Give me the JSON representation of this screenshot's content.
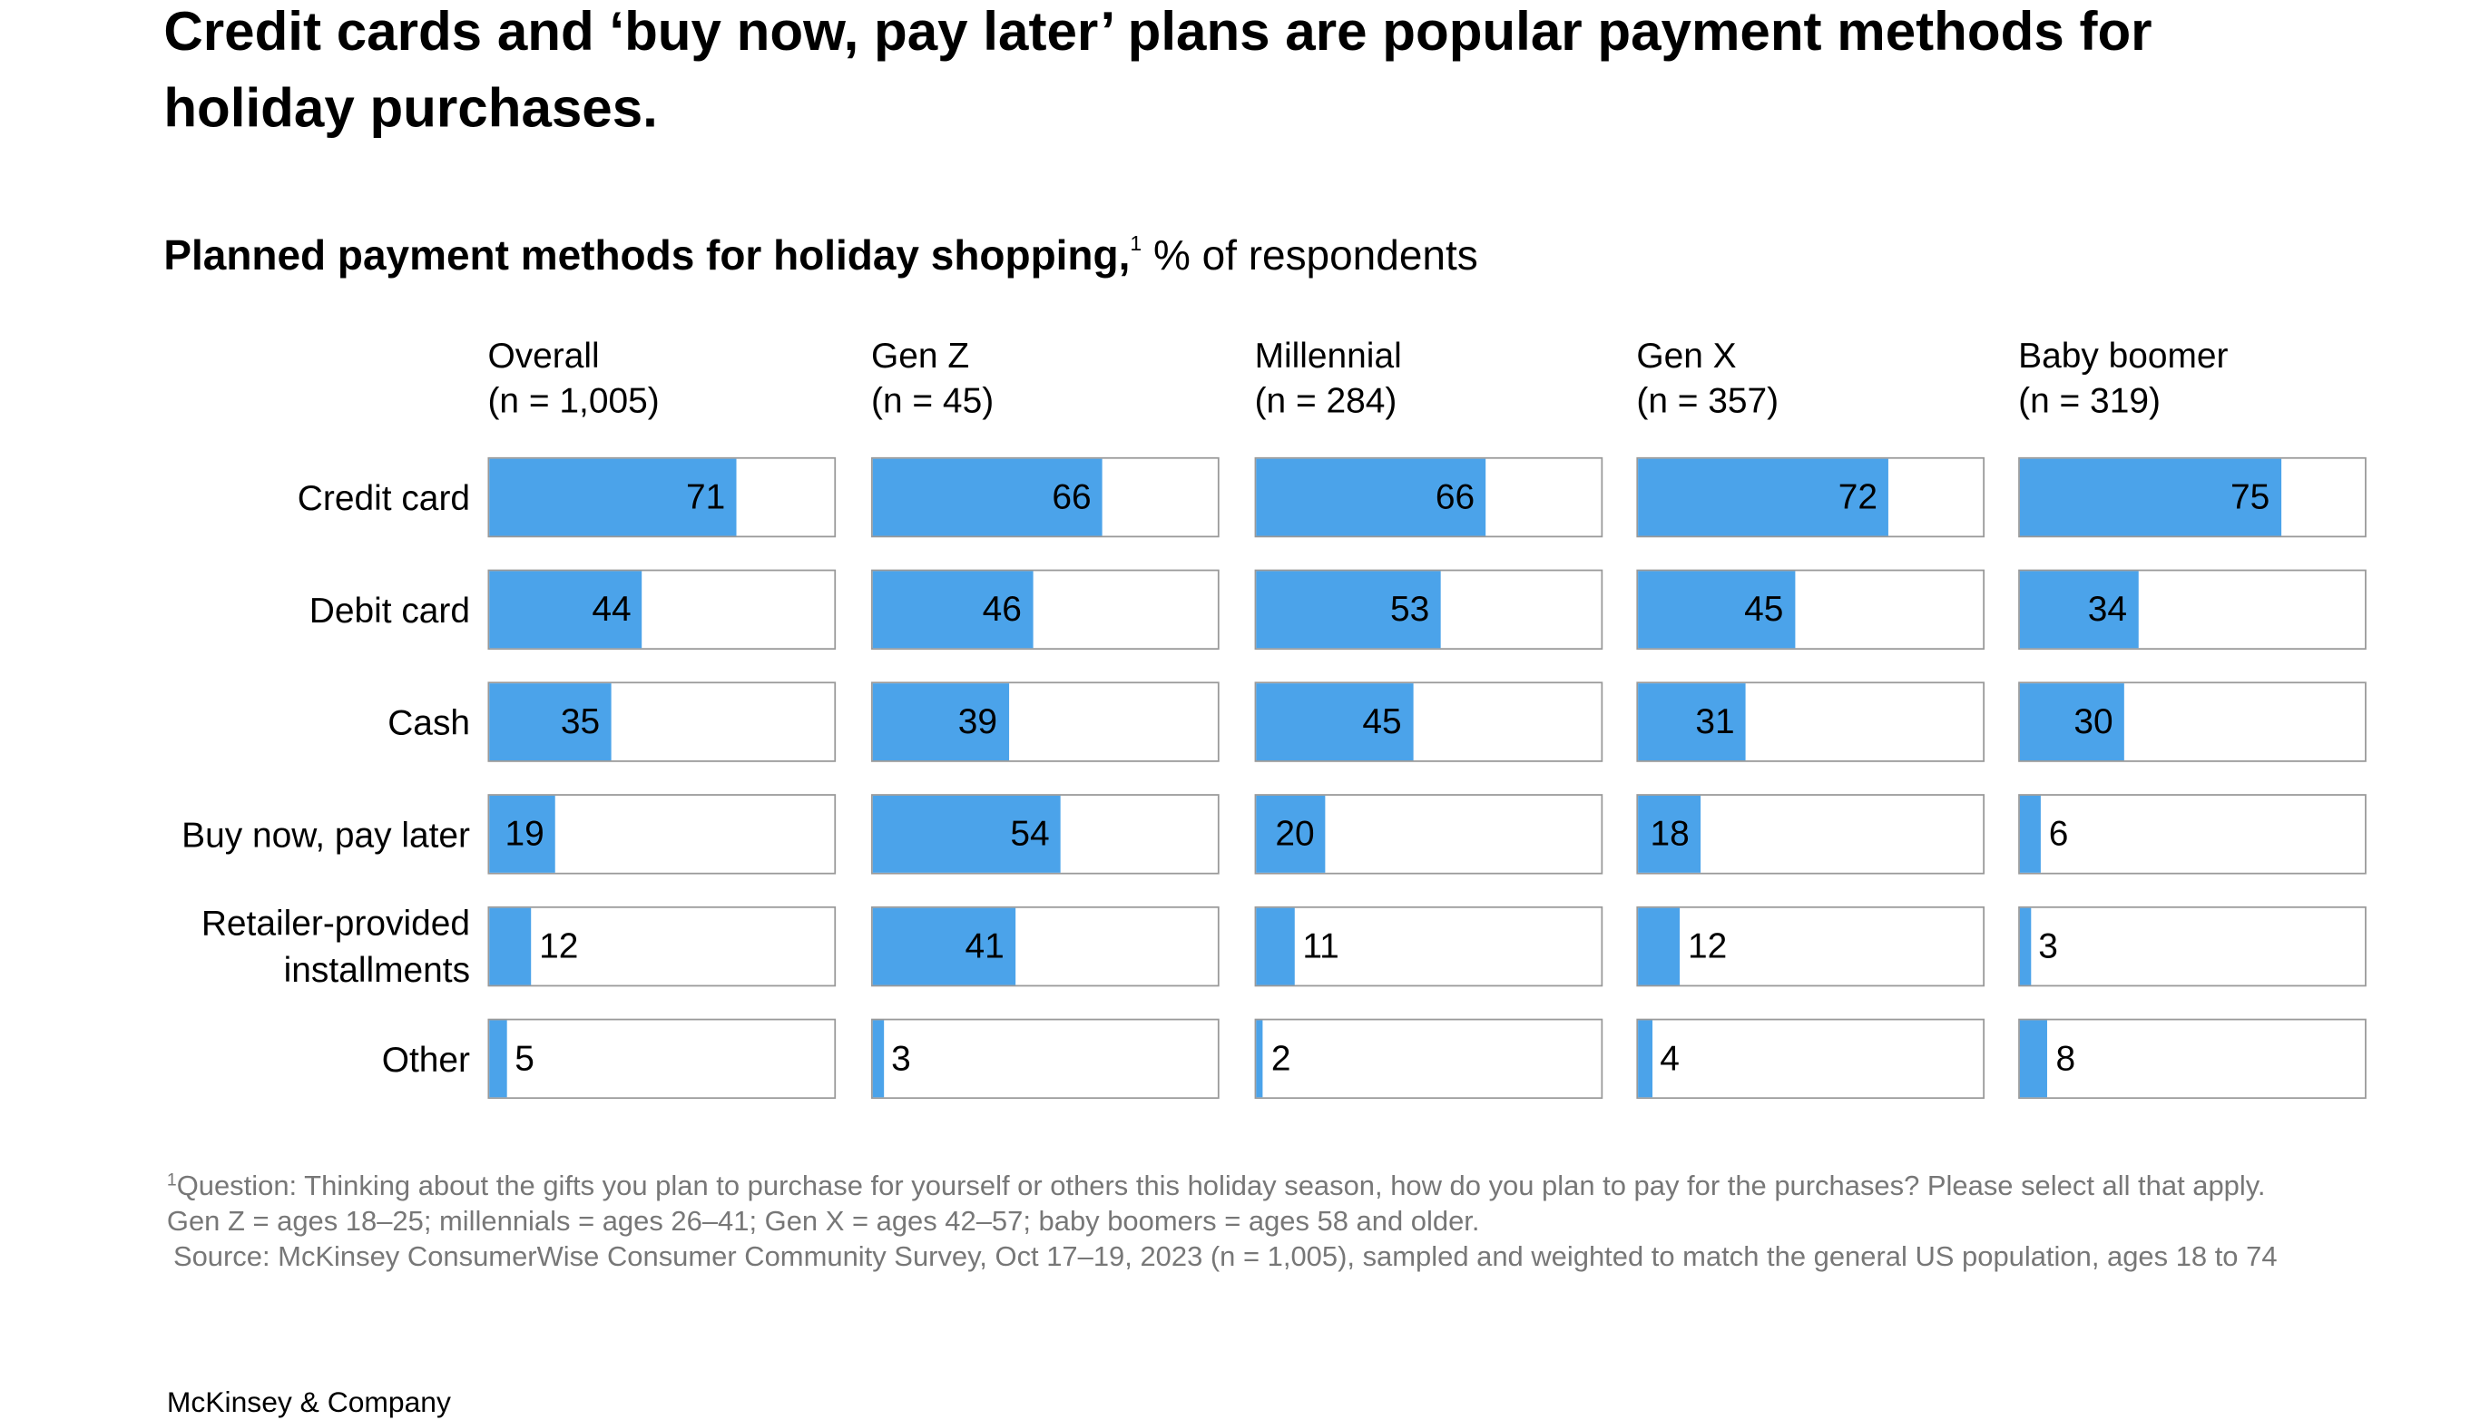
{
  "chart_data": {
    "type": "bar",
    "title": "Credit cards and ‘buy now, pay later’ plans are popular payment methods for holiday purchases.",
    "subtitle": "Planned payment methods for holiday shopping,",
    "subtitle_note": "1",
    "subtitle_unit": "% of respondents",
    "categories": [
      "Credit card",
      "Debit card",
      "Cash",
      "Buy now, pay later",
      "Retailer-provided installments",
      "Other"
    ],
    "xlim": [
      0,
      100
    ],
    "color": "#4ba3ea",
    "series": [
      {
        "name": "Overall",
        "sample": "(n = 1,005)",
        "values": [
          71,
          44,
          35,
          19,
          12,
          5
        ]
      },
      {
        "name": "Gen Z",
        "sample": "(n = 45)",
        "values": [
          66,
          46,
          39,
          54,
          41,
          3
        ]
      },
      {
        "name": "Millennial",
        "sample": "(n = 284)",
        "values": [
          66,
          53,
          45,
          20,
          11,
          2
        ]
      },
      {
        "name": "Gen X",
        "sample": "(n = 357)",
        "values": [
          72,
          45,
          31,
          18,
          12,
          4
        ]
      },
      {
        "name": "Baby boomer",
        "sample": "(n = 319)",
        "values": [
          75,
          34,
          30,
          6,
          3,
          8
        ]
      }
    ],
    "footnote_marker": "1",
    "footnotes": [
      "Question: Thinking about the gifts you plan to purchase for yourself or others this holiday season, how do you plan to pay for the purchases? Please select all that apply. Gen Z = ages 18–25; millennials = ages 26–41; Gen X = ages 42–57; baby boomers = ages 58 and older.",
      "Source: McKinsey ConsumerWise Consumer Community Survey, Oct 17–19, 2023 (n = 1,005), sampled and weighted to match the general US population, ages 18 to 74"
    ],
    "brand": "McKinsey & Company"
  }
}
